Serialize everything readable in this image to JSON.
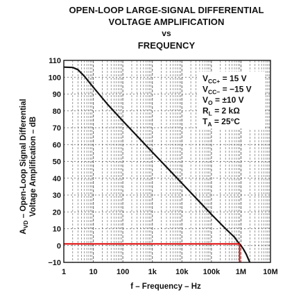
{
  "title": {
    "line1": "OPEN-LOOP LARGE-SIGNAL DIFFERENTIAL",
    "line2": "VOLTAGE AMPLIFICATION",
    "line3": "vs",
    "line4": "FREQUENCY"
  },
  "colors": {
    "axis": "#111111",
    "grid": "#555555",
    "gain_curve": "#111111",
    "highlight": "#e00000"
  },
  "conditions": [
    {
      "main": "V",
      "sub": "CC+",
      "rest": " = 15 V"
    },
    {
      "main": "V",
      "sub": "CC−",
      "rest": " = −15 V"
    },
    {
      "main": "V",
      "sub": "O",
      "rest": " = ±10 V"
    },
    {
      "main": "R",
      "sub": "L",
      "rest": " = 2 kΩ"
    },
    {
      "main": "T",
      "sub": "A",
      "rest": " = 25°C"
    }
  ],
  "chart_data": {
    "type": "line",
    "title": "OPEN-LOOP LARGE-SIGNAL DIFFERENTIAL VOLTAGE AMPLIFICATION vs FREQUENCY",
    "xlabel": "f – Frequency – Hz",
    "ylabel_main": "A",
    "ylabel_sub": "VD",
    "ylabel_rest": " – Open-Loop Signal Differential",
    "ylabel_line2": "Voltage Amplification – dB",
    "x_scale": "log",
    "xlim": [
      1,
      10000000
    ],
    "ylim": [
      -10,
      110
    ],
    "x_ticks": [
      1,
      10,
      100,
      1000,
      10000,
      100000,
      1000000,
      10000000
    ],
    "x_tick_labels": [
      "1",
      "10",
      "100",
      "1k",
      "10k",
      "100k",
      "1M",
      "10M"
    ],
    "y_ticks": [
      -10,
      0,
      10,
      20,
      30,
      40,
      50,
      60,
      70,
      80,
      90,
      100,
      110
    ],
    "y_tick_labels": [
      "−10",
      "0",
      "10",
      "20",
      "30",
      "40",
      "50",
      "60",
      "70",
      "80",
      "90",
      "100",
      "110"
    ],
    "grid": true,
    "series": [
      {
        "x": [
          1,
          2,
          3,
          5,
          10,
          30,
          100,
          1000,
          10000,
          100000,
          300000,
          600000,
          800000,
          1000000,
          1200000,
          1500000,
          2000000
        ],
        "y": [
          106,
          105.8,
          104.5,
          100.5,
          94,
          84,
          74,
          55.5,
          37,
          18.5,
          10,
          5,
          2,
          0,
          -2,
          -5,
          -10
        ]
      }
    ],
    "reference_line": {
      "y": 1,
      "x_start": 1,
      "x_end": 900000
    },
    "reference_drop": {
      "x": 900000,
      "y_start": 1,
      "y_end": -10
    },
    "legend": "none"
  }
}
